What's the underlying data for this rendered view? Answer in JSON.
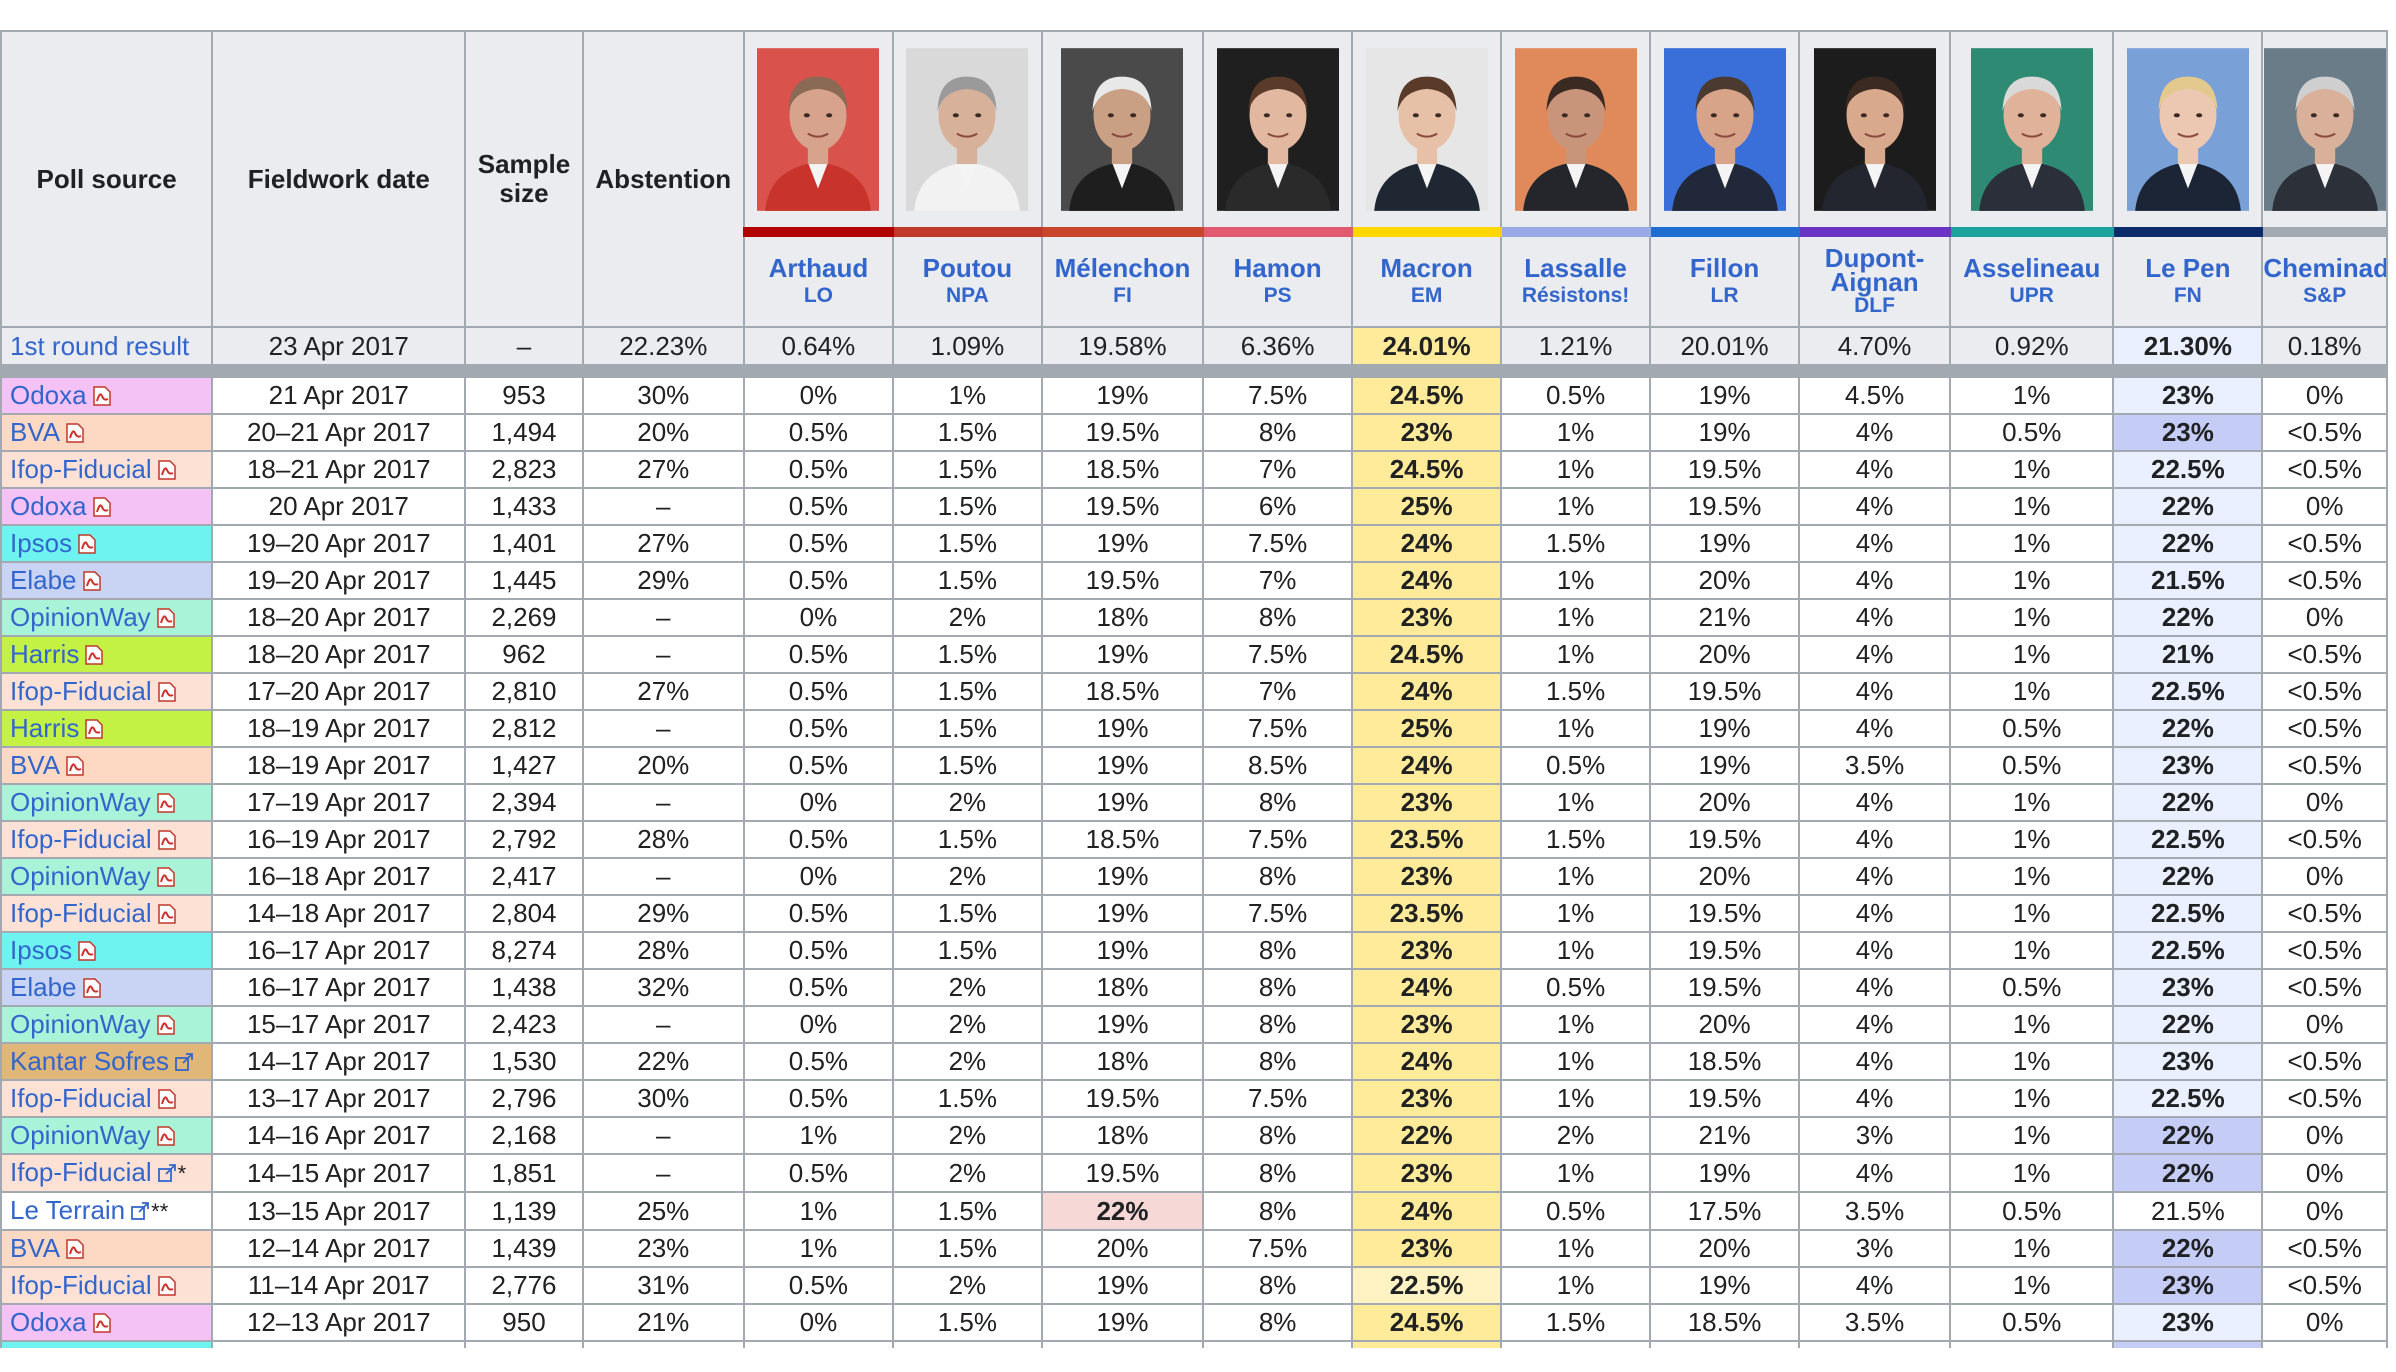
{
  "headers": {
    "poll_source": "Poll source",
    "fieldwork_date": "Fieldwork date",
    "sample_size": "Sample size",
    "abstention": "Abstention"
  },
  "candidates": [
    {
      "name": "Arthaud",
      "party": "LO",
      "color": "#b00000",
      "portrait": "arthaud-portrait"
    },
    {
      "name": "Poutou",
      "party": "NPA",
      "color": "#c0392b",
      "portrait": "poutou-portrait"
    },
    {
      "name": "Mélenchon",
      "party": "FI",
      "color": "#c9462c",
      "portrait": "melenchon-portrait"
    },
    {
      "name": "Hamon",
      "party": "PS",
      "color": "#e05a70",
      "portrait": "hamon-portrait"
    },
    {
      "name": "Macron",
      "party": "EM",
      "color": "#ffd600",
      "portrait": "macron-portrait"
    },
    {
      "name": "Lassalle",
      "party": "Résistons!",
      "color": "#9ba8e8",
      "portrait": "lassalle-portrait"
    },
    {
      "name": "Fillon",
      "party": "LR",
      "color": "#1f6fd0",
      "portrait": "fillon-portrait"
    },
    {
      "name": "Dupont-Aignan",
      "party": "DLF",
      "color": "#6a33c4",
      "portrait": "dupont-aignan-portrait"
    },
    {
      "name": "Asselineau",
      "party": "UPR",
      "color": "#1aa39a",
      "portrait": "asselineau-portrait"
    },
    {
      "name": "Le Pen",
      "party": "FN",
      "color": "#0d2a6b",
      "portrait": "le-pen-portrait"
    },
    {
      "name": "Cheminade",
      "party": "S&P",
      "color": "#a2a9b1",
      "portrait": "cheminade-portrait"
    }
  ],
  "result_row": {
    "source": "1st round result",
    "date": "23 Apr 2017",
    "sample": "–",
    "abstention": "22.23%",
    "values": [
      "0.64%",
      "1.09%",
      "19.58%",
      "6.36%",
      "24.01%",
      "1.21%",
      "20.01%",
      "4.70%",
      "0.92%",
      "21.30%",
      "0.18%"
    ]
  },
  "rows": [
    {
      "source": "Odoxa",
      "icon": "pdf",
      "color": "#f4c2f4",
      "date": "21 Apr 2017",
      "sample": "953",
      "abstention": "30%",
      "values": [
        "0%",
        "1%",
        "19%",
        "7.5%",
        "24.5%",
        "0.5%",
        "19%",
        "4.5%",
        "1%",
        "23%",
        "0%"
      ],
      "lp": "light"
    },
    {
      "source": "BVA",
      "icon": "pdf",
      "color": "#fdd9c4",
      "date": "20–21 Apr 2017",
      "sample": "1,494",
      "abstention": "20%",
      "values": [
        "0.5%",
        "1.5%",
        "19.5%",
        "8%",
        "23%",
        "1%",
        "19%",
        "4%",
        "0.5%",
        "23%",
        "<0.5%"
      ],
      "lp": "dark"
    },
    {
      "source": "Ifop-Fiducial",
      "icon": "pdf",
      "color": "#fde1d4",
      "date": "18–21 Apr 2017",
      "sample": "2,823",
      "abstention": "27%",
      "values": [
        "0.5%",
        "1.5%",
        "18.5%",
        "7%",
        "24.5%",
        "1%",
        "19.5%",
        "4%",
        "1%",
        "22.5%",
        "<0.5%"
      ],
      "lp": "light"
    },
    {
      "source": "Odoxa",
      "icon": "pdf",
      "color": "#f4c2f4",
      "date": "20 Apr 2017",
      "sample": "1,433",
      "abstention": "–",
      "values": [
        "0.5%",
        "1.5%",
        "19.5%",
        "6%",
        "25%",
        "1%",
        "19.5%",
        "4%",
        "1%",
        "22%",
        "0%"
      ],
      "lp": "light"
    },
    {
      "source": "Ipsos",
      "icon": "pdf",
      "color": "#6ff3f0",
      "date": "19–20 Apr 2017",
      "sample": "1,401",
      "abstention": "27%",
      "values": [
        "0.5%",
        "1.5%",
        "19%",
        "7.5%",
        "24%",
        "1.5%",
        "19%",
        "4%",
        "1%",
        "22%",
        "<0.5%"
      ],
      "lp": "light"
    },
    {
      "source": "Elabe",
      "icon": "pdf",
      "color": "#c9d3f4",
      "date": "19–20 Apr 2017",
      "sample": "1,445",
      "abstention": "29%",
      "values": [
        "0.5%",
        "1.5%",
        "19.5%",
        "7%",
        "24%",
        "1%",
        "20%",
        "4%",
        "1%",
        "21.5%",
        "<0.5%"
      ],
      "lp": "light"
    },
    {
      "source": "OpinionWay",
      "icon": "pdf",
      "color": "#a9f3d8",
      "date": "18–20 Apr 2017",
      "sample": "2,269",
      "abstention": "–",
      "values": [
        "0%",
        "2%",
        "18%",
        "8%",
        "23%",
        "1%",
        "21%",
        "4%",
        "1%",
        "22%",
        "0%"
      ],
      "lp": "light"
    },
    {
      "source": "Harris",
      "icon": "pdf",
      "color": "#c3f244",
      "date": "18–20 Apr 2017",
      "sample": "962",
      "abstention": "–",
      "values": [
        "0.5%",
        "1.5%",
        "19%",
        "7.5%",
        "24.5%",
        "1%",
        "20%",
        "4%",
        "1%",
        "21%",
        "<0.5%"
      ],
      "lp": "light"
    },
    {
      "source": "Ifop-Fiducial",
      "icon": "pdf",
      "color": "#fde1d4",
      "date": "17–20 Apr 2017",
      "sample": "2,810",
      "abstention": "27%",
      "values": [
        "0.5%",
        "1.5%",
        "18.5%",
        "7%",
        "24%",
        "1.5%",
        "19.5%",
        "4%",
        "1%",
        "22.5%",
        "<0.5%"
      ],
      "lp": "light"
    },
    {
      "source": "Harris",
      "icon": "pdf",
      "color": "#c3f244",
      "date": "18–19 Apr 2017",
      "sample": "2,812",
      "abstention": "–",
      "values": [
        "0.5%",
        "1.5%",
        "19%",
        "7.5%",
        "25%",
        "1%",
        "19%",
        "4%",
        "0.5%",
        "22%",
        "<0.5%"
      ],
      "lp": "light"
    },
    {
      "source": "BVA",
      "icon": "pdf",
      "color": "#fdd9c4",
      "date": "18–19 Apr 2017",
      "sample": "1,427",
      "abstention": "20%",
      "values": [
        "0.5%",
        "1.5%",
        "19%",
        "8.5%",
        "24%",
        "0.5%",
        "19%",
        "3.5%",
        "0.5%",
        "23%",
        "<0.5%"
      ],
      "lp": "light"
    },
    {
      "source": "OpinionWay",
      "icon": "pdf",
      "color": "#a9f3d8",
      "date": "17–19 Apr 2017",
      "sample": "2,394",
      "abstention": "–",
      "values": [
        "0%",
        "2%",
        "19%",
        "8%",
        "23%",
        "1%",
        "20%",
        "4%",
        "1%",
        "22%",
        "0%"
      ],
      "lp": "light"
    },
    {
      "source": "Ifop-Fiducial",
      "icon": "pdf",
      "color": "#fde1d4",
      "date": "16–19 Apr 2017",
      "sample": "2,792",
      "abstention": "28%",
      "values": [
        "0.5%",
        "1.5%",
        "18.5%",
        "7.5%",
        "23.5%",
        "1.5%",
        "19.5%",
        "4%",
        "1%",
        "22.5%",
        "<0.5%"
      ],
      "lp": "light"
    },
    {
      "source": "OpinionWay",
      "icon": "pdf",
      "color": "#a9f3d8",
      "date": "16–18 Apr 2017",
      "sample": "2,417",
      "abstention": "–",
      "values": [
        "0%",
        "2%",
        "19%",
        "8%",
        "23%",
        "1%",
        "20%",
        "4%",
        "1%",
        "22%",
        "0%"
      ],
      "lp": "light"
    },
    {
      "source": "Ifop-Fiducial",
      "icon": "pdf",
      "color": "#fde1d4",
      "date": "14–18 Apr 2017",
      "sample": "2,804",
      "abstention": "29%",
      "values": [
        "0.5%",
        "1.5%",
        "19%",
        "7.5%",
        "23.5%",
        "1%",
        "19.5%",
        "4%",
        "1%",
        "22.5%",
        "<0.5%"
      ],
      "lp": "light"
    },
    {
      "source": "Ipsos",
      "icon": "pdf",
      "color": "#6ff3f0",
      "date": "16–17 Apr 2017",
      "sample": "8,274",
      "abstention": "28%",
      "values": [
        "0.5%",
        "1.5%",
        "19%",
        "8%",
        "23%",
        "1%",
        "19.5%",
        "4%",
        "1%",
        "22.5%",
        "<0.5%"
      ],
      "lp": "light"
    },
    {
      "source": "Elabe",
      "icon": "pdf",
      "color": "#c9d3f4",
      "date": "16–17 Apr 2017",
      "sample": "1,438",
      "abstention": "32%",
      "values": [
        "0.5%",
        "2%",
        "18%",
        "8%",
        "24%",
        "0.5%",
        "19.5%",
        "4%",
        "0.5%",
        "23%",
        "<0.5%"
      ],
      "lp": "light"
    },
    {
      "source": "OpinionWay",
      "icon": "pdf",
      "color": "#a9f3d8",
      "date": "15–17 Apr 2017",
      "sample": "2,423",
      "abstention": "–",
      "values": [
        "0%",
        "2%",
        "19%",
        "8%",
        "23%",
        "1%",
        "20%",
        "4%",
        "1%",
        "22%",
        "0%"
      ],
      "lp": "light"
    },
    {
      "source": "Kantar Sofres",
      "icon": "ext",
      "color": "#e0b779",
      "date": "14–17 Apr 2017",
      "sample": "1,530",
      "abstention": "22%",
      "values": [
        "0.5%",
        "2%",
        "18%",
        "8%",
        "24%",
        "1%",
        "18.5%",
        "4%",
        "1%",
        "23%",
        "<0.5%"
      ],
      "lp": "light"
    },
    {
      "source": "Ifop-Fiducial",
      "icon": "pdf",
      "color": "#fde1d4",
      "date": "13–17 Apr 2017",
      "sample": "2,796",
      "abstention": "30%",
      "values": [
        "0.5%",
        "1.5%",
        "19.5%",
        "7.5%",
        "23%",
        "1%",
        "19.5%",
        "4%",
        "1%",
        "22.5%",
        "<0.5%"
      ],
      "lp": "light"
    },
    {
      "source": "OpinionWay",
      "icon": "pdf",
      "color": "#a9f3d8",
      "date": "14–16 Apr 2017",
      "sample": "2,168",
      "abstention": "–",
      "values": [
        "1%",
        "2%",
        "18%",
        "8%",
        "22%",
        "2%",
        "21%",
        "3%",
        "1%",
        "22%",
        "0%"
      ],
      "lp": "dark"
    },
    {
      "source": "Ifop-Fiducial",
      "icon": "ext",
      "mark": "*",
      "color": "#fde1d4",
      "date": "14–15 Apr 2017",
      "sample": "1,851",
      "abstention": "–",
      "values": [
        "0.5%",
        "2%",
        "19.5%",
        "8%",
        "23%",
        "1%",
        "19%",
        "4%",
        "1%",
        "22%",
        "0%"
      ],
      "lp": "dark"
    },
    {
      "source": "Le Terrain",
      "icon": "ext",
      "mark": "**",
      "color": "#ffffff",
      "date": "13–15 Apr 2017",
      "sample": "1,139",
      "abstention": "25%",
      "values": [
        "1%",
        "1.5%",
        "22%",
        "8%",
        "24%",
        "0.5%",
        "17.5%",
        "3.5%",
        "0.5%",
        "21.5%",
        "0%"
      ],
      "lp": "none",
      "mel": true
    },
    {
      "source": "BVA",
      "icon": "pdf",
      "color": "#fdd9c4",
      "date": "12–14 Apr 2017",
      "sample": "1,439",
      "abstention": "23%",
      "values": [
        "1%",
        "1.5%",
        "20%",
        "7.5%",
        "23%",
        "1%",
        "20%",
        "3%",
        "1%",
        "22%",
        "<0.5%"
      ],
      "lp": "dark"
    },
    {
      "source": "Ifop-Fiducial",
      "icon": "pdf",
      "color": "#fde1d4",
      "date": "11–14 Apr 2017",
      "sample": "2,776",
      "abstention": "31%",
      "values": [
        "0.5%",
        "2%",
        "19%",
        "8%",
        "22.5%",
        "1%",
        "19%",
        "4%",
        "1%",
        "23%",
        "<0.5%"
      ],
      "lp": "dark",
      "mac_light": true
    },
    {
      "source": "Odoxa",
      "icon": "pdf",
      "color": "#f4c2f4",
      "date": "12–13 Apr 2017",
      "sample": "950",
      "abstention": "21%",
      "values": [
        "0%",
        "1.5%",
        "19%",
        "8%",
        "24.5%",
        "1.5%",
        "18.5%",
        "3.5%",
        "0.5%",
        "23%",
        "0%"
      ],
      "lp": "light"
    }
  ]
}
